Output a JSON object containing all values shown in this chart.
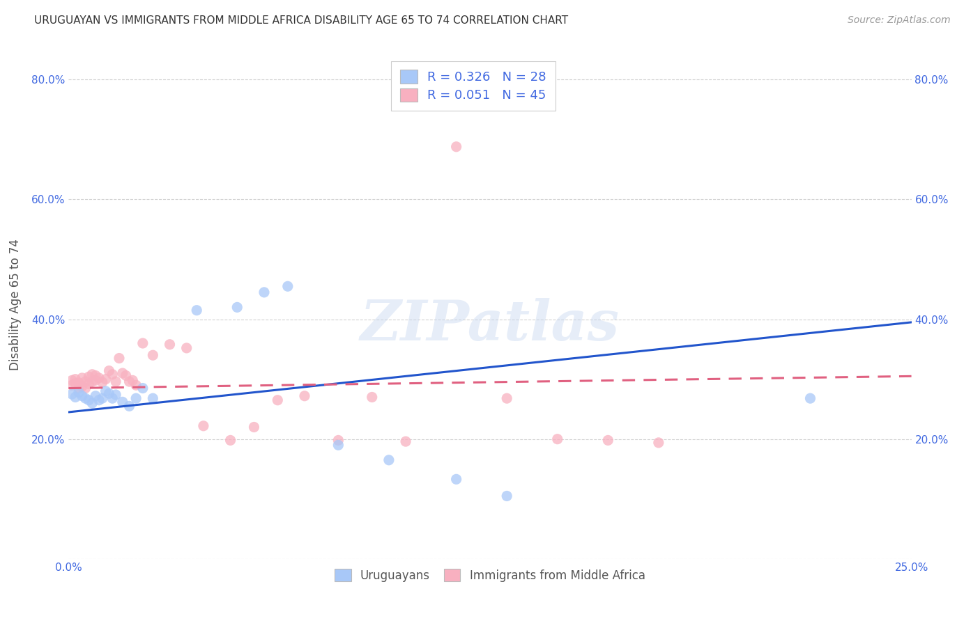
{
  "title": "URUGUAYAN VS IMMIGRANTS FROM MIDDLE AFRICA DISABILITY AGE 65 TO 74 CORRELATION CHART",
  "source": "Source: ZipAtlas.com",
  "ylabel_label": "Disability Age 65 to 74",
  "xlim": [
    0.0,
    0.25
  ],
  "ylim": [
    0.0,
    0.85
  ],
  "xticks": [
    0.0,
    0.05,
    0.1,
    0.15,
    0.2,
    0.25
  ],
  "yticks": [
    0.0,
    0.2,
    0.4,
    0.6,
    0.8
  ],
  "ytick_labels": [
    "",
    "20.0%",
    "40.0%",
    "60.0%",
    "80.0%"
  ],
  "xtick_labels": [
    "0.0%",
    "",
    "",
    "",
    "",
    "25.0%"
  ],
  "uruguayans_color": "#a8c8f8",
  "immigrants_color": "#f8b0c0",
  "line_uruguayans_color": "#2255cc",
  "line_immigrants_color": "#e06080",
  "uruguayans_R": 0.326,
  "uruguayans_N": 28,
  "immigrants_R": 0.051,
  "immigrants_N": 45,
  "uru_line_x0": 0.0,
  "uru_line_y0": 0.245,
  "uru_line_x1": 0.25,
  "uru_line_y1": 0.395,
  "imm_line_x0": 0.0,
  "imm_line_y0": 0.285,
  "imm_line_x1": 0.25,
  "imm_line_y1": 0.305,
  "uruguayans_x": [
    0.001,
    0.002,
    0.003,
    0.004,
    0.005,
    0.006,
    0.007,
    0.008,
    0.009,
    0.01,
    0.011,
    0.012,
    0.013,
    0.014,
    0.016,
    0.018,
    0.02,
    0.022,
    0.025,
    0.038,
    0.05,
    0.058,
    0.065,
    0.08,
    0.095,
    0.115,
    0.13,
    0.22
  ],
  "uruguayans_y": [
    0.275,
    0.27,
    0.278,
    0.272,
    0.268,
    0.265,
    0.26,
    0.272,
    0.265,
    0.268,
    0.28,
    0.276,
    0.268,
    0.274,
    0.262,
    0.255,
    0.268,
    0.285,
    0.268,
    0.415,
    0.42,
    0.445,
    0.455,
    0.19,
    0.165,
    0.133,
    0.105,
    0.268
  ],
  "immigrants_x": [
    0.001,
    0.001,
    0.002,
    0.002,
    0.003,
    0.003,
    0.004,
    0.004,
    0.005,
    0.005,
    0.006,
    0.006,
    0.007,
    0.007,
    0.008,
    0.008,
    0.009,
    0.01,
    0.011,
    0.012,
    0.013,
    0.014,
    0.015,
    0.016,
    0.017,
    0.018,
    0.019,
    0.02,
    0.022,
    0.025,
    0.03,
    0.035,
    0.04,
    0.048,
    0.055,
    0.062,
    0.07,
    0.08,
    0.09,
    0.1,
    0.115,
    0.13,
    0.145,
    0.16,
    0.175
  ],
  "immigrants_y": [
    0.29,
    0.298,
    0.293,
    0.3,
    0.285,
    0.294,
    0.302,
    0.288,
    0.296,
    0.285,
    0.304,
    0.292,
    0.296,
    0.308,
    0.298,
    0.306,
    0.302,
    0.295,
    0.3,
    0.314,
    0.308,
    0.296,
    0.335,
    0.31,
    0.306,
    0.296,
    0.298,
    0.29,
    0.36,
    0.34,
    0.358,
    0.352,
    0.222,
    0.198,
    0.22,
    0.265,
    0.272,
    0.198,
    0.27,
    0.196,
    0.688,
    0.268,
    0.2,
    0.198,
    0.194
  ]
}
